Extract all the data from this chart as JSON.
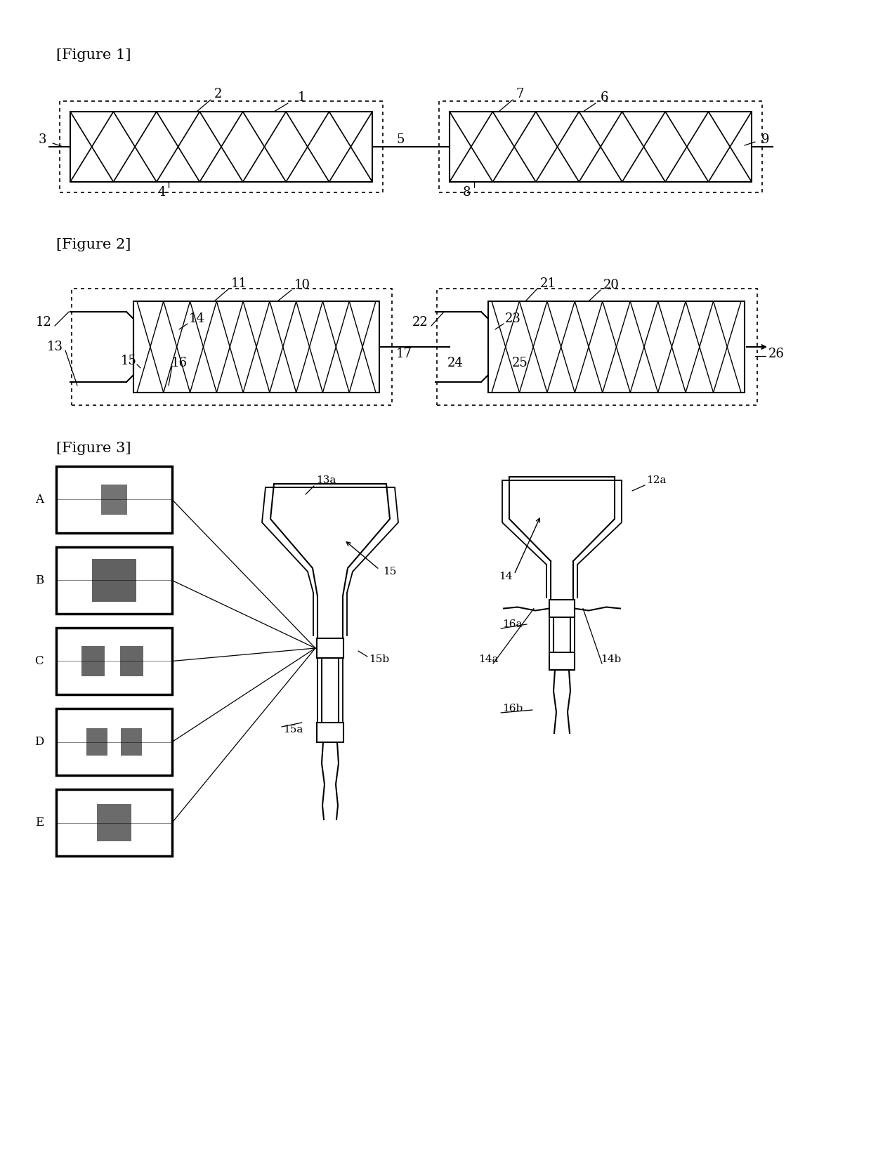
{
  "bg_color": "#ffffff",
  "line_color": "#000000",
  "fig1_label": "[Figure 1]",
  "fig2_label": "[Figure 2]",
  "fig3_label": "[Figure 3]",
  "label_fontsize": 15,
  "annot_fontsize": 13
}
